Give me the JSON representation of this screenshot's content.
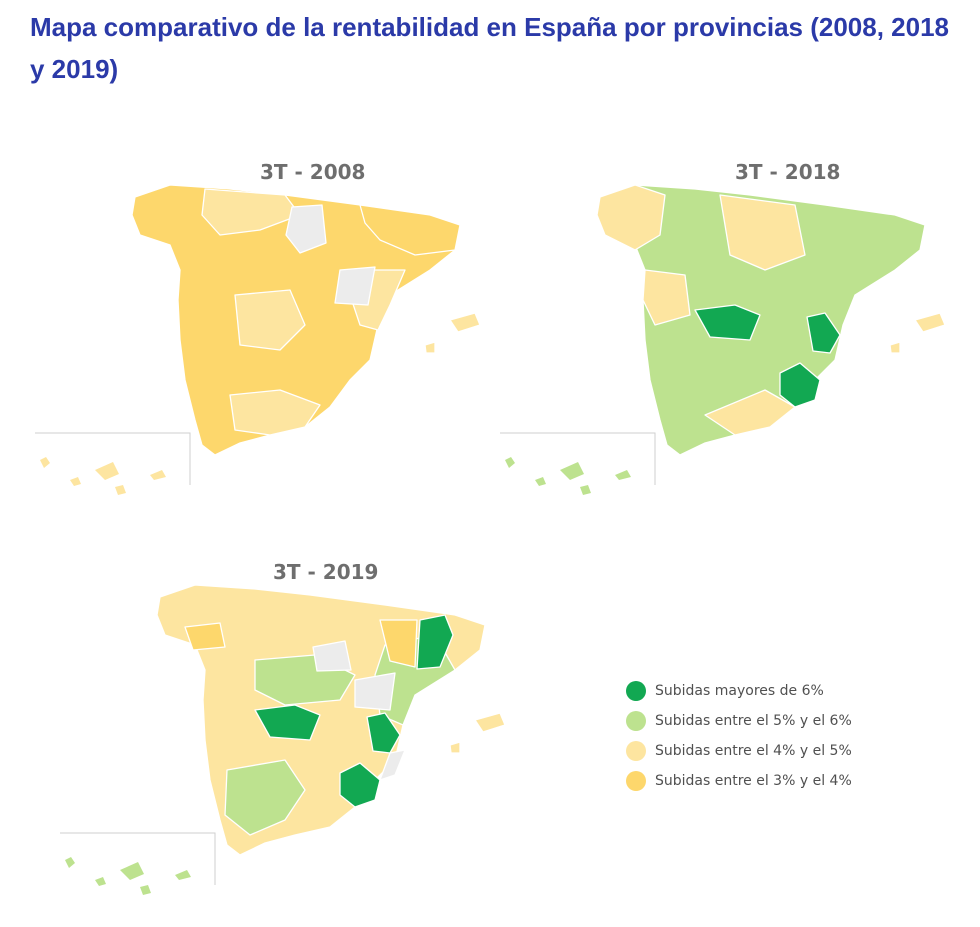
{
  "title": "Mapa comparativo de la rentabilidad en España por provincias (2008, 2018 y 2019)",
  "colors": {
    "dark_green": "#12a852",
    "light_green": "#bde28f",
    "light_yellow": "#fde5a0",
    "yellow": "#fdd76c",
    "no_data": "#ececec",
    "border": "#ffffff"
  },
  "maps": [
    {
      "label": "3T - 2008",
      "base_category": "yellow"
    },
    {
      "label": "3T - 2018",
      "base_category": "light_green"
    },
    {
      "label": "3T - 2019",
      "base_category": "light_yellow"
    }
  ],
  "legend": {
    "items": [
      {
        "label": "Subidas mayores de 6%",
        "color": "#12a852"
      },
      {
        "label": "Subidas entre el 5% y el 6%",
        "color": "#bde28f"
      },
      {
        "label": "Subidas entre el 4% y el 5%",
        "color": "#fde5a0"
      },
      {
        "label": "Subidas entre el 3% y el 4%",
        "color": "#fdd76c"
      }
    ]
  }
}
